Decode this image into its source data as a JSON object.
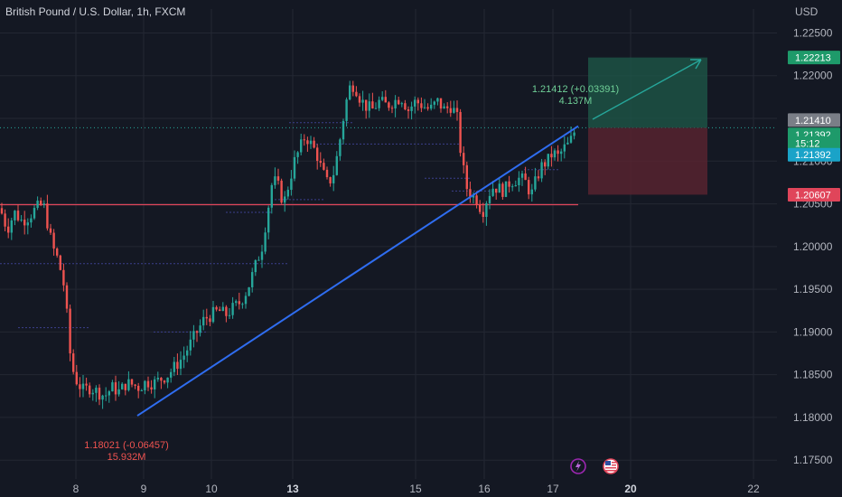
{
  "header": {
    "title": "British Pound / U.S. Dollar, 1h, FXCM"
  },
  "chart_data": {
    "type": "candlestick",
    "title": "British Pound / U.S. Dollar, 1h, FXCM",
    "currency_label": "USD",
    "ylim": [
      1.1728,
      1.2278
    ],
    "y_ticks": [
      "1.22500",
      "1.22000",
      "1.21500",
      "1.21000",
      "1.20500",
      "1.20000",
      "1.19500",
      "1.19000",
      "1.18500",
      "1.18000",
      "1.17500"
    ],
    "x_ticks": [
      {
        "label": "8",
        "bold": false
      },
      {
        "label": "9",
        "bold": false
      },
      {
        "label": "10",
        "bold": false
      },
      {
        "label": "13",
        "bold": true
      },
      {
        "label": "15",
        "bold": false
      },
      {
        "label": "16",
        "bold": false
      },
      {
        "label": "17",
        "bold": false
      },
      {
        "label": "20",
        "bold": true
      },
      {
        "label": "22",
        "bold": false
      }
    ],
    "grid": true,
    "price_path": [
      [
        0,
        1.2045
      ],
      [
        8,
        1.202
      ],
      [
        16,
        1.204
      ],
      [
        24,
        1.203
      ],
      [
        32,
        1.2035
      ],
      [
        40,
        1.2045
      ],
      [
        48,
        1.205
      ],
      [
        52,
        1.203
      ],
      [
        58,
        1.2
      ],
      [
        64,
        1.1985
      ],
      [
        70,
        1.196
      ],
      [
        74,
        1.192
      ],
      [
        78,
        1.187
      ],
      [
        82,
        1.185
      ],
      [
        86,
        1.184
      ],
      [
        92,
        1.1832
      ],
      [
        100,
        1.1835
      ],
      [
        108,
        1.183
      ],
      [
        116,
        1.1825
      ],
      [
        124,
        1.1835
      ],
      [
        132,
        1.183
      ],
      [
        140,
        1.184
      ],
      [
        148,
        1.1838
      ],
      [
        154,
        1.1835
      ],
      [
        162,
        1.1842
      ],
      [
        170,
        1.184
      ],
      [
        178,
        1.1845
      ],
      [
        186,
        1.185
      ],
      [
        194,
        1.186
      ],
      [
        202,
        1.187
      ],
      [
        210,
        1.1885
      ],
      [
        218,
        1.19
      ],
      [
        226,
        1.1915
      ],
      [
        234,
        1.192
      ],
      [
        242,
        1.1925
      ],
      [
        250,
        1.192
      ],
      [
        258,
        1.1928
      ],
      [
        266,
        1.1935
      ],
      [
        274,
        1.195
      ],
      [
        282,
        1.1975
      ],
      [
        290,
        1.2
      ],
      [
        296,
        1.204
      ],
      [
        302,
        1.208
      ],
      [
        308,
        1.207
      ],
      [
        314,
        1.205
      ],
      [
        320,
        1.2075
      ],
      [
        326,
        1.21
      ],
      [
        332,
        1.2115
      ],
      [
        338,
        1.213
      ],
      [
        344,
        1.212
      ],
      [
        350,
        1.211
      ],
      [
        356,
        1.209
      ],
      [
        362,
        1.2075
      ],
      [
        368,
        1.208
      ],
      [
        374,
        1.211
      ],
      [
        380,
        1.215
      ],
      [
        386,
        1.2185
      ],
      [
        392,
        1.219
      ],
      [
        398,
        1.2175
      ],
      [
        404,
        1.2165
      ],
      [
        412,
        1.216
      ],
      [
        420,
        1.217
      ],
      [
        428,
        1.2165
      ],
      [
        436,
        1.217
      ],
      [
        444,
        1.2175
      ],
      [
        452,
        1.216
      ],
      [
        460,
        1.217
      ],
      [
        468,
        1.2165
      ],
      [
        476,
        1.216
      ],
      [
        484,
        1.217
      ],
      [
        492,
        1.216
      ],
      [
        500,
        1.2165
      ],
      [
        506,
        1.215
      ],
      [
        510,
        1.211
      ],
      [
        516,
        1.207
      ],
      [
        522,
        1.206
      ],
      [
        528,
        1.2055
      ],
      [
        534,
        1.204
      ],
      [
        540,
        1.206
      ],
      [
        546,
        1.207
      ],
      [
        552,
        1.2068
      ],
      [
        558,
        1.2065
      ],
      [
        564,
        1.2075
      ],
      [
        570,
        1.2078
      ],
      [
        576,
        1.208
      ],
      [
        582,
        1.2075
      ],
      [
        588,
        1.206
      ],
      [
        594,
        1.208
      ],
      [
        600,
        1.2095
      ],
      [
        606,
        1.21
      ],
      [
        612,
        1.211
      ],
      [
        618,
        1.2105
      ],
      [
        624,
        1.2115
      ],
      [
        630,
        1.212
      ],
      [
        636,
        1.2135
      ],
      [
        640,
        1.2139
      ]
    ],
    "annotations": {
      "low_text": "1.18021 (-0.06457)",
      "low_volume": "15.932M",
      "high_text": "1.21412 (+0.03391)",
      "high_volume": "4.137M"
    },
    "trendline": {
      "from": [
        152,
        1.1802
      ],
      "to": [
        640,
        1.2141
      ]
    },
    "horizontal_lines": [
      {
        "price": 1.2049,
        "color": "#e0455a"
      },
      {
        "price": 1.2139,
        "color": "#26a69a"
      }
    ],
    "position": {
      "entry": 1.2139,
      "target": 1.22213,
      "stop": 1.20607
    },
    "price_tags": [
      {
        "label": "1.22213",
        "price": 1.22213,
        "color": "#1e9a6a"
      },
      {
        "label": "1.21410",
        "price": 1.2148,
        "color": "#7a7e87"
      },
      {
        "label": "1.21392",
        "price": 1.21312,
        "color": "#1e9a6a"
      },
      {
        "label": "15:12",
        "price": 1.2121,
        "color": "#1e9a6a"
      },
      {
        "label": "1.21392",
        "price": 1.21075,
        "color": "#1aa3c8"
      },
      {
        "label": "1.20607",
        "price": 1.20607,
        "color": "#e0455a"
      }
    ],
    "colors": {
      "up": "#26a69a",
      "down": "#ef5350",
      "trendline": "#2f6df0",
      "background": "#141823"
    }
  }
}
